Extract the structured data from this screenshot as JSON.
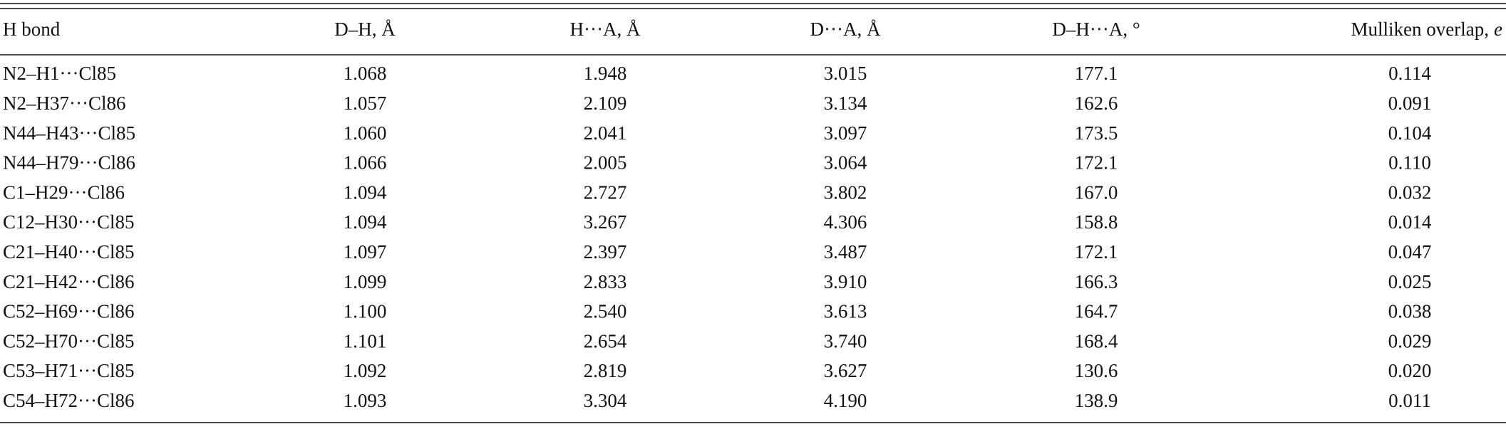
{
  "table": {
    "headers": [
      "H bond",
      "D–H, Å",
      "H···A, Å",
      "D···A, Å",
      "D–H···A, °",
      {
        "text": "Mulliken overlap,",
        "unit": "e"
      }
    ],
    "rows": [
      [
        "N2–H1···Cl85",
        "1.068",
        "1.948",
        "3.015",
        "177.1",
        "0.114"
      ],
      [
        "N2–H37···Cl86",
        "1.057",
        "2.109",
        "3.134",
        "162.6",
        "0.091"
      ],
      [
        "N44–H43···Cl85",
        "1.060",
        "2.041",
        "3.097",
        "173.5",
        "0.104"
      ],
      [
        "N44–H79···Cl86",
        "1.066",
        "2.005",
        "3.064",
        "172.1",
        "0.110"
      ],
      [
        "C1–H29···Cl86",
        "1.094",
        "2.727",
        "3.802",
        "167.0",
        "0.032"
      ],
      [
        "C12–H30···Cl85",
        "1.094",
        "3.267",
        "4.306",
        "158.8",
        "0.014"
      ],
      [
        "C21–H40···Cl85",
        "1.097",
        "2.397",
        "3.487",
        "172.1",
        "0.047"
      ],
      [
        "C21–H42···Cl86",
        "1.099",
        "2.833",
        "3.910",
        "166.3",
        "0.025"
      ],
      [
        "C52–H69···Cl86",
        "1.100",
        "2.540",
        "3.613",
        "164.7",
        "0.038"
      ],
      [
        "C52–H70···Cl85",
        "1.101",
        "2.654",
        "3.740",
        "168.4",
        "0.029"
      ],
      [
        "C53–H71···Cl85",
        "1.092",
        "2.819",
        "3.627",
        "130.6",
        "0.020"
      ],
      [
        "C54–H72···Cl86",
        "1.093",
        "3.304",
        "4.190",
        "138.9",
        "0.011"
      ]
    ]
  }
}
